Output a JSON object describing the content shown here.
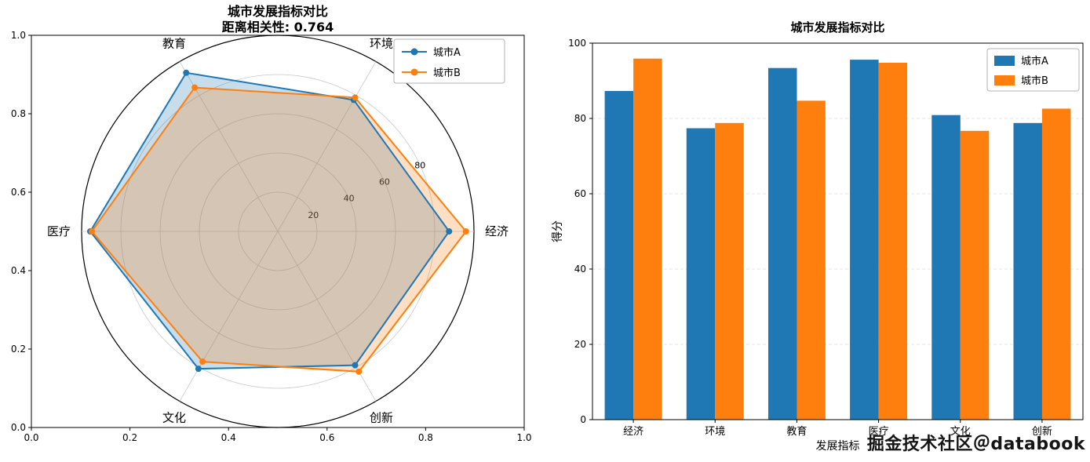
{
  "watermark": "掘金技术社区＠databook",
  "chart_data": [
    {
      "type": "radar",
      "title": "城市发展指标对比",
      "subtitle": "距离相关性: 0.764",
      "categories": [
        "经济",
        "环境",
        "教育",
        "医疗",
        "文化",
        "创新"
      ],
      "series": [
        {
          "name": "城市A",
          "color": "#1f77b4",
          "values": [
            87.3,
            77.4,
            93.4,
            95.6,
            80.9,
            78.8
          ]
        },
        {
          "name": "城市B",
          "color": "#ff7f0e",
          "values": [
            95.9,
            78.8,
            84.7,
            94.8,
            76.7,
            82.6
          ]
        }
      ],
      "radial_ticks": [
        20,
        40,
        60,
        80
      ],
      "r_max": 100,
      "outer_ticks": [
        "0.0",
        "0.2",
        "0.4",
        "0.6",
        "0.8",
        "1.0"
      ],
      "legend_position": "upper right",
      "grid": true
    },
    {
      "type": "bar",
      "title": "城市发展指标对比",
      "xlabel": "发展指标",
      "ylabel": "得分",
      "categories": [
        "经济",
        "环境",
        "教育",
        "医疗",
        "文化",
        "创新"
      ],
      "series": [
        {
          "name": "城市A",
          "color": "#1f77b4",
          "values": [
            87.3,
            77.4,
            93.4,
            95.6,
            80.9,
            78.8
          ]
        },
        {
          "name": "城市B",
          "color": "#ff7f0e",
          "values": [
            95.9,
            78.8,
            84.7,
            94.8,
            76.7,
            82.6
          ]
        }
      ],
      "yticks": [
        0,
        20,
        40,
        60,
        80,
        100
      ],
      "ylim": [
        0,
        100
      ],
      "legend_position": "upper right",
      "grid": true
    }
  ]
}
